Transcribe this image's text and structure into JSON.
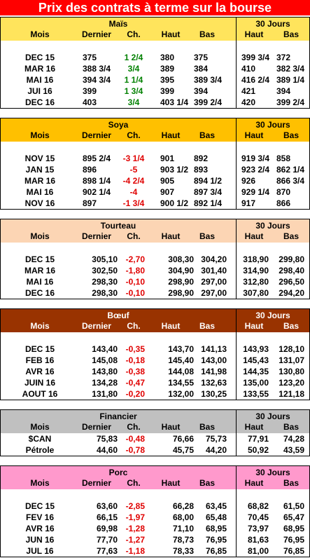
{
  "title": "Prix des contrats à terme sur la bourse",
  "sections": [
    {
      "name": "Maïs",
      "header_bg": "#FFE45C",
      "header_color": "#000000",
      "change_color": "#008000",
      "align": "left",
      "blank_row": true,
      "columns": [
        "Mois",
        "Dernier",
        "Ch.",
        "Haut",
        "Bas"
      ],
      "group_label": "30 Jours",
      "group_columns": [
        "Haut",
        "Bas"
      ],
      "rows": [
        [
          "DEC 15",
          "375",
          "1 2/4",
          "380",
          "375",
          "399 3/4",
          "372"
        ],
        [
          "MAR 16",
          "388 3/4",
          "3/4",
          "389",
          "384",
          "410",
          "382 3/4"
        ],
        [
          "MAI 16",
          "394 3/4",
          "1 1/4",
          "395",
          "389 3/4",
          "416 2/4",
          "389 1/4"
        ],
        [
          "JUI 16",
          "399",
          "1 3/4",
          "399",
          "394",
          "421",
          "394"
        ],
        [
          "DEC 16",
          "403",
          "3/4",
          "403 1/4",
          "399 2/4",
          "420",
          "399 2/4"
        ]
      ]
    },
    {
      "name": "Soya",
      "header_bg": "#FFC000",
      "header_color": "#000000",
      "change_color": "#E00000",
      "align": "left",
      "blank_row": true,
      "columns": [
        "Mois",
        "Dernier",
        "Ch.",
        "Haut",
        "Bas"
      ],
      "group_label": "30 Jours",
      "group_columns": [
        "Haut",
        "Bas"
      ],
      "rows": [
        [
          "NOV 15",
          "895 2/4",
          "-3 1/4",
          "901",
          "892",
          "919 3/4",
          "858"
        ],
        [
          "JAN 15",
          "896",
          "-5",
          "903 1/2",
          "893",
          "923 2/4",
          "862 1/4"
        ],
        [
          "MAR 16",
          "898 1/4",
          "-4 2/4",
          "905",
          "894 1/2",
          "926",
          "866 3/4"
        ],
        [
          "MAI 16",
          "902 1/4",
          "-4",
          "907",
          "897 3/4",
          "929 1/4",
          "870"
        ],
        [
          "NOV 16",
          "897",
          "-1 3/4",
          "900 1/2",
          "892 1/4",
          "917",
          "866"
        ]
      ]
    },
    {
      "name": "Tourteau",
      "header_bg": "#FCD5B4",
      "header_color": "#000000",
      "change_color": "#E00000",
      "align": "right",
      "blank_row": true,
      "columns": [
        "Mois",
        "Dernier",
        "Ch.",
        "Haut",
        "Bas"
      ],
      "group_label": "30 Jours",
      "group_columns": [
        "Haut",
        "Bas"
      ],
      "rows": [
        [
          "DEC 15",
          "305,10",
          "-2,70",
          "308,30",
          "304,20",
          "318,90",
          "299,80"
        ],
        [
          "MAR 16",
          "302,50",
          "-1,80",
          "304,90",
          "301,40",
          "314,90",
          "298,40"
        ],
        [
          "MAI 16",
          "298,30",
          "-0,10",
          "298,90",
          "297,00",
          "312,80",
          "296,50"
        ],
        [
          "DEC 16",
          "298,30",
          "-0,10",
          "298,90",
          "297,00",
          "307,80",
          "294,20"
        ]
      ]
    },
    {
      "name": "Bœuf",
      "header_bg": "#993300",
      "header_color": "#FFFFFF",
      "change_color": "#E00000",
      "align": "right",
      "blank_row": true,
      "columns": [
        "Mois",
        "Dernier",
        "Ch.",
        "Haut",
        "Bas"
      ],
      "group_label": "30 Jours",
      "group_columns": [
        "Haut",
        "Bas"
      ],
      "rows": [
        [
          "DEC 15",
          "143,40",
          "-0,35",
          "143,70",
          "141,13",
          "143,93",
          "128,10"
        ],
        [
          "FEB 16",
          "145,08",
          "-0,18",
          "145,40",
          "143,00",
          "145,43",
          "131,07"
        ],
        [
          "AVR 16",
          "143,80",
          "-0,38",
          "144,08",
          "141,98",
          "144,35",
          "130,80"
        ],
        [
          "JUIN 16",
          "134,28",
          "-0,47",
          "134,55",
          "132,63",
          "135,00",
          "123,20"
        ],
        [
          "AOUT 16",
          "131,80",
          "-0,20",
          "132,00",
          "130,25",
          "133,55",
          "121,18"
        ]
      ]
    },
    {
      "name": "Financier",
      "header_bg": "#C0C0C0",
      "header_color": "#000000",
      "change_color": "#E00000",
      "align": "right",
      "blank_row": false,
      "columns": [
        "Mois",
        "Dernier",
        "Ch.",
        "Haut",
        "Bas"
      ],
      "group_label": "30 Jours",
      "group_columns": [
        "Haut",
        "Bas"
      ],
      "rows": [
        [
          "$CAN",
          "75,83",
          "-0,48",
          "76,66",
          "75,73",
          "77,91",
          "74,28"
        ],
        [
          "Pétrole",
          "44,60",
          "-0,78",
          "45,75",
          "44,20",
          "50,92",
          "43,59"
        ]
      ]
    },
    {
      "name": "Porc",
      "header_bg": "#FF99CC",
      "header_color": "#000000",
      "change_color": "#E00000",
      "align": "right",
      "blank_row": true,
      "columns": [
        "Mois",
        "Dernier",
        "Ch.",
        "Haut",
        "Bas"
      ],
      "group_label": "30 Jours",
      "group_columns": [
        "Haut",
        "Bas"
      ],
      "rows": [
        [
          "DEC 15",
          "63,60",
          "-2,85",
          "66,28",
          "63,45",
          "68,82",
          "61,50"
        ],
        [
          "FEV 16",
          "66,15",
          "-1,97",
          "68,00",
          "65,48",
          "70,45",
          "65,47"
        ],
        [
          "AVR 16",
          "69,98",
          "-1,28",
          "71,10",
          "68,95",
          "73,97",
          "68,95"
        ],
        [
          "JUN 16",
          "77,70",
          "-1,27",
          "78,73",
          "76,95",
          "81,63",
          "76,95"
        ],
        [
          "JUL 16",
          "77,63",
          "-1,18",
          "78,33",
          "76,85",
          "81,00",
          "76,85"
        ]
      ]
    }
  ]
}
